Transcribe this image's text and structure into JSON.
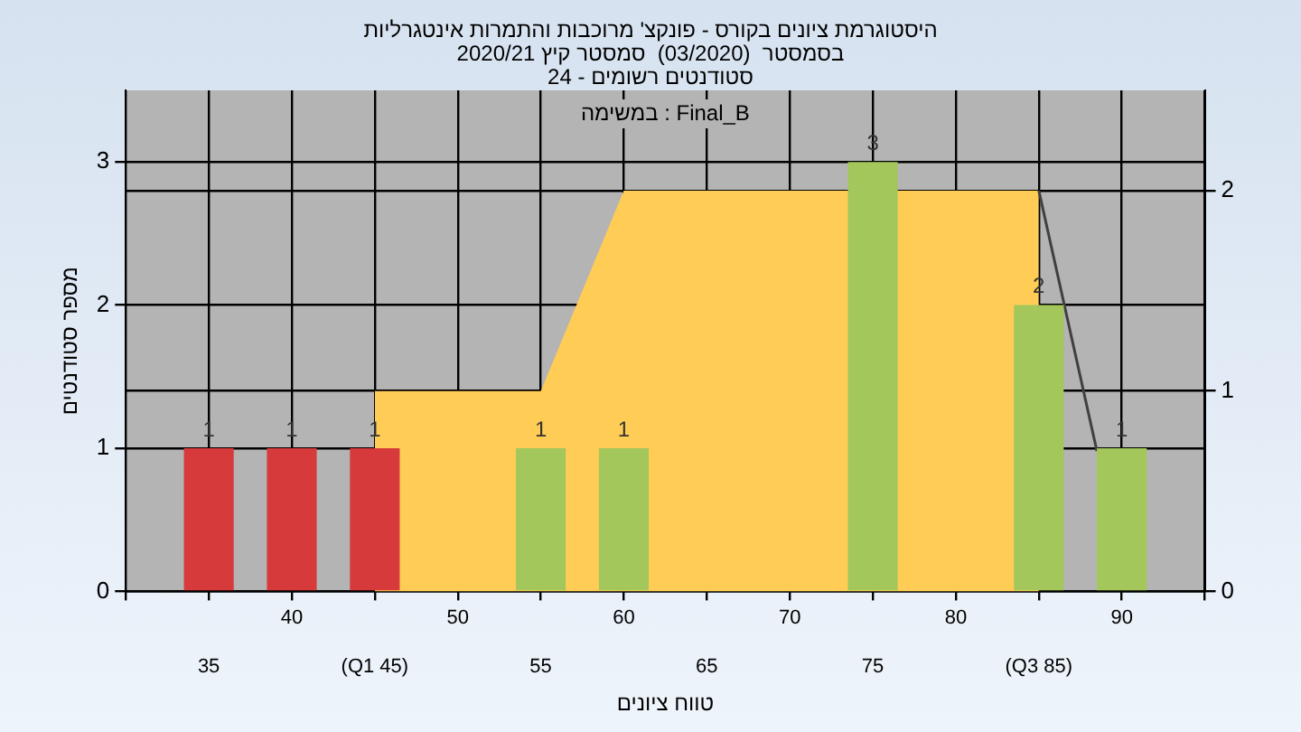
{
  "chart_data": {
    "type": "bar",
    "title": "היסטוגרמת ציונים בקורס - פונקצ' מרוכבות והתמרות אינטגרליות",
    "subtitle": "בסמסטר  (03/2020)  סמסטר קיץ 2020/21\nסטודנטים רשומים - 24",
    "xlabel": "טווח ציונים",
    "ylabel": "מספר סטודנטים",
    "annotations": [
      "במשימה : Final_B"
    ],
    "xlim": [
      30,
      95
    ],
    "xticks": [
      {
        "value": 30,
        "label": null
      },
      {
        "value": 35,
        "label": null
      },
      40,
      {
        "value": 45,
        "label": null
      },
      50,
      {
        "value": 55,
        "label": null
      },
      60,
      {
        "value": 65,
        "label": null
      },
      70,
      {
        "value": 75,
        "label": null
      },
      80,
      {
        "value": 85,
        "label": null
      },
      90,
      {
        "value": 95,
        "label": null
      }
    ],
    "x2lim": [
      30,
      95
    ],
    "x2ticks": [
      35,
      {
        "value": 45,
        "label": "(Q1 45)"
      },
      55,
      65,
      75,
      {
        "value": 85,
        "label": "(Q3 85)"
      }
    ],
    "ylim": [
      0,
      3.5
    ],
    "yticks": [
      0,
      1,
      2,
      3
    ],
    "y2lim": [
      0,
      2.5
    ],
    "y2ticks": [
      0,
      1,
      2
    ],
    "grid": true,
    "legend": false,
    "series": [
      {
        "type": "area",
        "axis": "y2",
        "color": "#ffcc55",
        "x": [
          45,
          45,
          55,
          60,
          85,
          85
        ],
        "values": [
          0,
          1,
          1,
          2,
          2,
          0
        ]
      },
      {
        "type": "line",
        "axis": "y2",
        "color": "#404040",
        "x": [
          85,
          88.5
        ],
        "values": [
          2,
          0.7
        ],
        "marker": "none"
      },
      {
        "x": [
          35,
          40,
          45,
          55,
          60,
          75,
          85,
          90
        ],
        "values": [
          1,
          1,
          1,
          1,
          1,
          3,
          2,
          1
        ],
        "value_labels": [
          "1",
          "1",
          "1",
          "1",
          "1",
          "3",
          "2",
          "1"
        ],
        "colors": [
          "#d63a3a",
          "#d63a3a",
          "#d63a3a",
          "#a3c75a",
          "#a3c75a",
          "#a3c75a",
          "#a3c75a",
          "#a3c75a"
        ]
      }
    ]
  }
}
